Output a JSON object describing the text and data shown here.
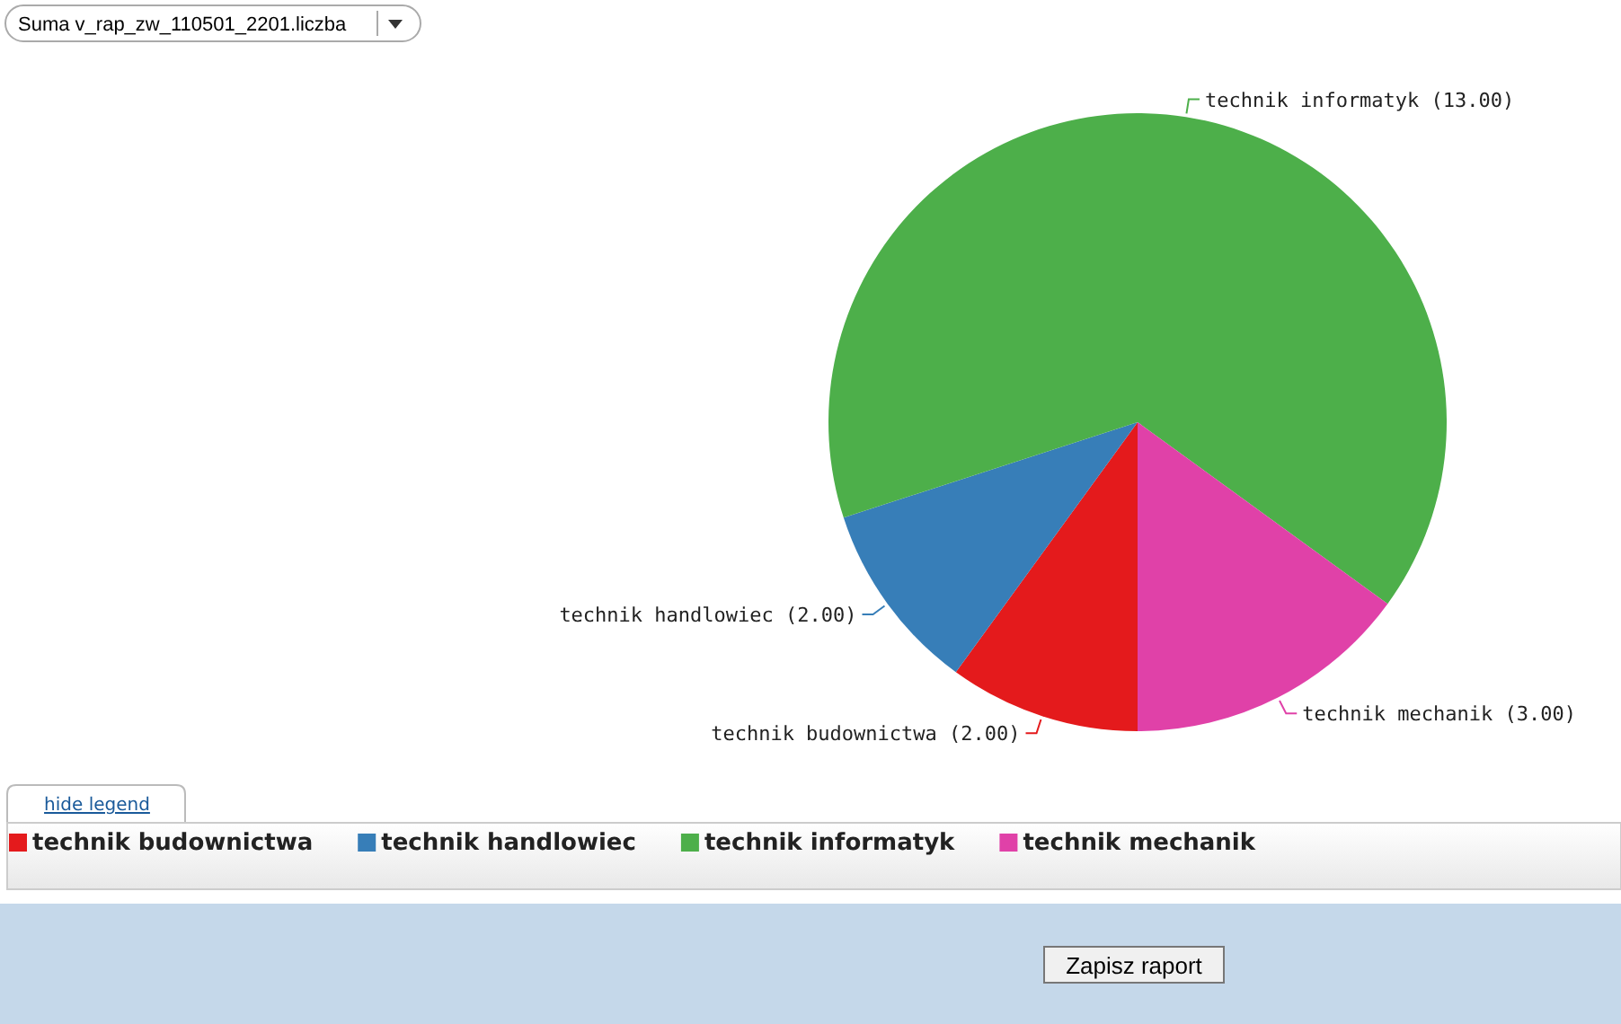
{
  "chart_data": {
    "type": "pie",
    "categories": [
      "technik budownictwa",
      "technik handlowiec",
      "technik informatyk",
      "technik mechanik"
    ],
    "values": [
      2,
      2,
      13,
      3
    ],
    "colors": [
      "#e41a1c",
      "#377eb8",
      "#4daf4a",
      "#e041a8"
    ],
    "value_labels": [
      "technik budownictwa (2.00)",
      "technik handlowiec (2.00)",
      "technik informatyk (13.00)",
      "technik mechanik (3.00)"
    ],
    "legend": "bottom",
    "annotations": [
      "Suma v_rap_zw_110501_2201.liczba",
      "hide legend",
      "Zapisz raport"
    ]
  }
}
